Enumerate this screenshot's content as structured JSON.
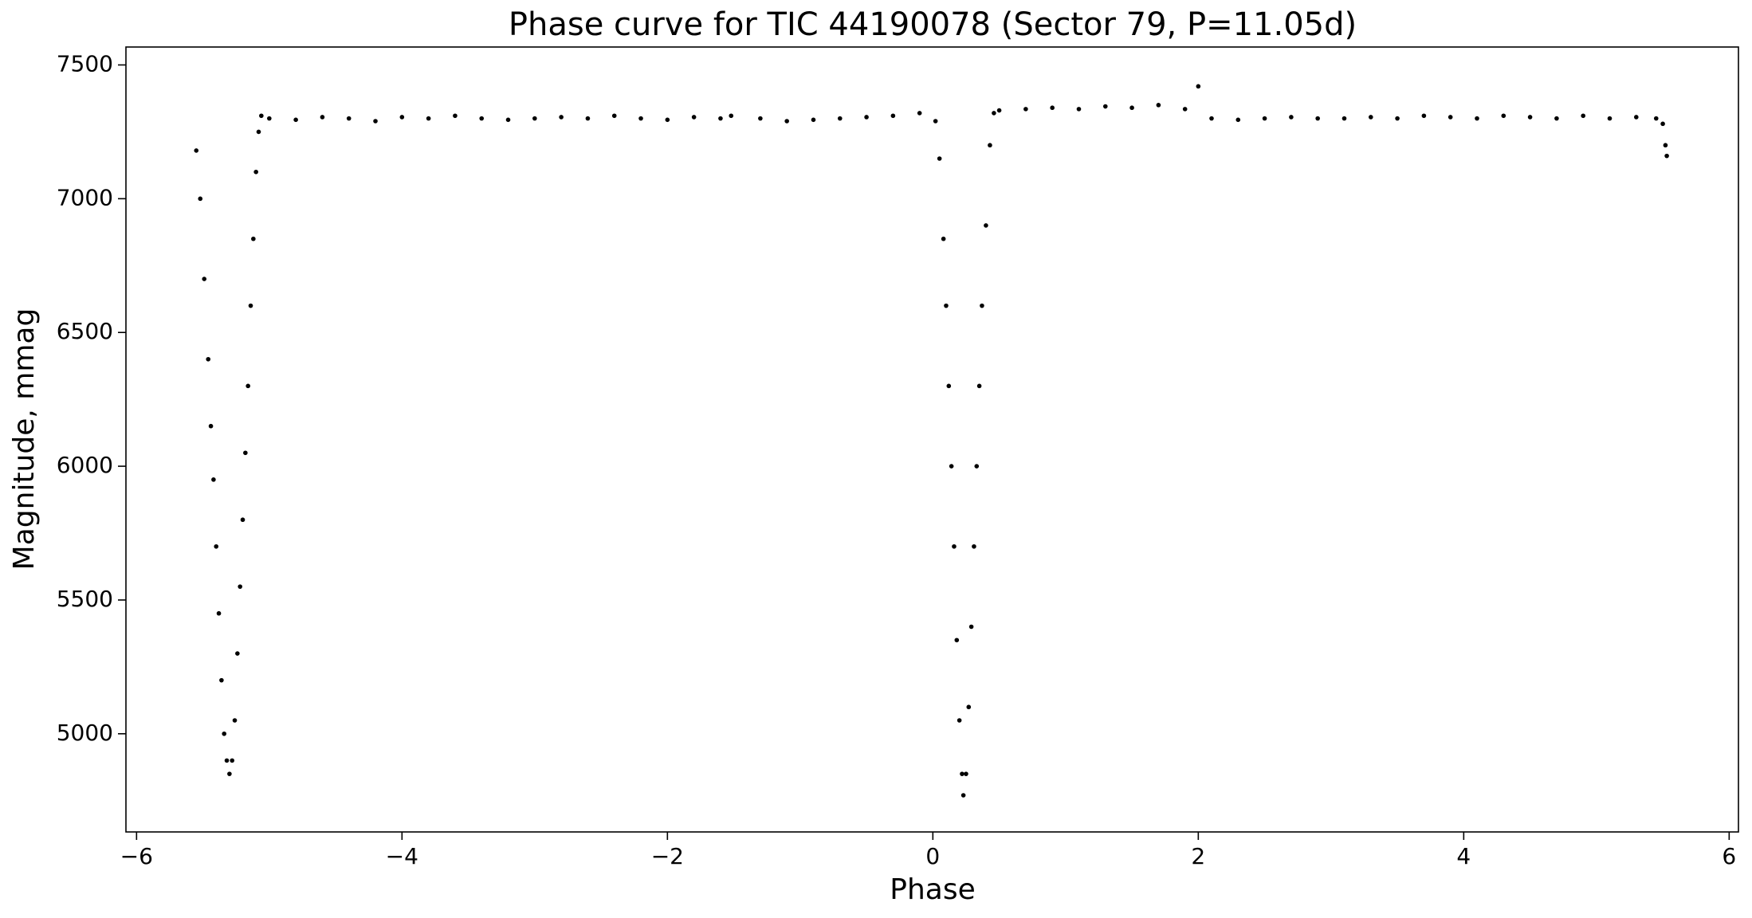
{
  "chart_data": {
    "type": "scatter",
    "title": "Phase curve for TIC 44190078 (Sector 79, P=11.05d)",
    "x_label": "Phase",
    "y_label": "Magnitude, mmag",
    "color": "#000000",
    "xlim": [
      -6.08,
      6.07
    ],
    "ylim": [
      4633,
      7567
    ],
    "xticks": [
      {
        "value": -6,
        "label": "−6"
      },
      {
        "value": -4,
        "label": "−4"
      },
      {
        "value": -2,
        "label": "−2"
      },
      0,
      2,
      4,
      6
    ],
    "yticks": [
      5000,
      5500,
      6000,
      6500,
      7000,
      7500
    ],
    "x": [
      -5.55,
      -5.52,
      -5.49,
      -5.46,
      -5.44,
      -5.42,
      -5.4,
      -5.38,
      -5.36,
      -5.34,
      -5.32,
      -5.3,
      -5.28,
      -5.26,
      -5.24,
      -5.22,
      -5.2,
      -5.18,
      -5.16,
      -5.14,
      -5.12,
      -5.1,
      -5.08,
      -5.06,
      -5.0,
      -4.8,
      -4.6,
      -4.4,
      -4.2,
      -4.0,
      -3.8,
      -3.6,
      -3.4,
      -3.2,
      -3.0,
      -2.8,
      -2.6,
      -2.4,
      -2.2,
      -2.0,
      -1.8,
      -1.6,
      -1.52,
      -1.3,
      -1.1,
      -0.9,
      -0.7,
      -0.5,
      -0.3,
      -0.1,
      0.02,
      0.05,
      0.08,
      0.1,
      0.12,
      0.14,
      0.16,
      0.18,
      0.2,
      0.22,
      0.23,
      0.25,
      0.27,
      0.29,
      0.31,
      0.33,
      0.35,
      0.37,
      0.4,
      0.43,
      0.46,
      0.5,
      0.7,
      0.9,
      1.1,
      1.3,
      1.5,
      1.7,
      1.9,
      2.0,
      2.1,
      2.3,
      2.5,
      2.7,
      2.9,
      3.1,
      3.3,
      3.5,
      3.7,
      3.9,
      4.1,
      4.3,
      4.5,
      4.7,
      4.9,
      5.1,
      5.3,
      5.45,
      5.5,
      5.52,
      5.53
    ],
    "values": [
      7180,
      7000,
      6700,
      6400,
      6150,
      5950,
      5700,
      5450,
      5200,
      5000,
      4900,
      4850,
      4900,
      5050,
      5300,
      5550,
      5800,
      6050,
      6300,
      6600,
      6850,
      7100,
      7250,
      7310,
      7300,
      7295,
      7305,
      7300,
      7290,
      7305,
      7300,
      7310,
      7300,
      7295,
      7300,
      7305,
      7300,
      7310,
      7300,
      7295,
      7305,
      7300,
      7310,
      7300,
      7290,
      7295,
      7300,
      7305,
      7310,
      7320,
      7290,
      7150,
      6850,
      6600,
      6300,
      6000,
      5700,
      5350,
      5050,
      4850,
      4770,
      4850,
      5100,
      5400,
      5700,
      6000,
      6300,
      6600,
      6900,
      7200,
      7320,
      7330,
      7335,
      7340,
      7335,
      7345,
      7340,
      7350,
      7335,
      7420,
      7300,
      7295,
      7300,
      7305,
      7300,
      7300,
      7305,
      7300,
      7310,
      7305,
      7300,
      7310,
      7305,
      7300,
      7310,
      7300,
      7305,
      7300,
      7280,
      7200,
      7160
    ]
  }
}
